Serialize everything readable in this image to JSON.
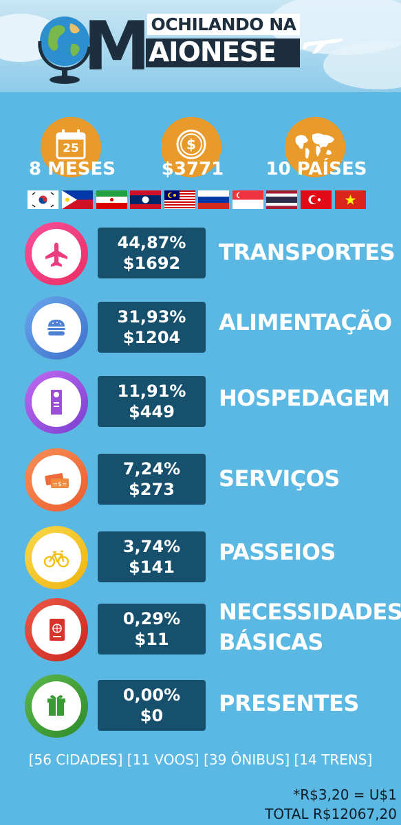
{
  "header": {
    "logo_top": "OCHILANDO NA",
    "logo_m": "M",
    "logo_bottom": "AIONESE"
  },
  "stats": [
    {
      "icon": "calendar-icon",
      "badge": "25",
      "text": "8 MESES"
    },
    {
      "icon": "dollar-coin-icon",
      "badge": "$",
      "text": "$3771"
    },
    {
      "icon": "world-map-icon",
      "badge": "",
      "text": "10 PAÍSES"
    }
  ],
  "flags": [
    "south-korea",
    "philippines",
    "iran",
    "laos",
    "malaysia",
    "russia",
    "singapore",
    "thailand",
    "turkey",
    "vietnam"
  ],
  "chart_data": {
    "type": "table",
    "columns": [
      "category",
      "percent",
      "amount"
    ],
    "rows": [
      {
        "category": "TRANSPORTES",
        "percent": "44,87%",
        "amount": "$1692",
        "value": 1692,
        "share": 44.87,
        "icon": "airplane-icon",
        "color": "#ee3a7e"
      },
      {
        "category": "ALIMENTAÇÃO",
        "percent": "31,93%",
        "amount": "$1204",
        "value": 1204,
        "share": 31.93,
        "icon": "burger-icon",
        "color": "#4f82d6"
      },
      {
        "category": "HOSPEDAGEM",
        "percent": "11,91%",
        "amount": "$449",
        "value": 449,
        "share": 11.91,
        "icon": "door-hanger-icon",
        "color": "#9b4fd8"
      },
      {
        "category": "SERVIÇOS",
        "percent": "7,24%",
        "amount": "$273",
        "value": 273,
        "share": 7.24,
        "icon": "money-bills-icon",
        "color": "#ef6a3a"
      },
      {
        "category": "PASSEIOS",
        "percent": "3,74%",
        "amount": "$141",
        "value": 141,
        "share": 3.74,
        "icon": "bicycle-icon",
        "color": "#f2c21b"
      },
      {
        "category": "NECESSIDADES BÁSICAS",
        "category_lines": [
          "NECESSIDADES",
          "BÁSICAS"
        ],
        "percent": "0,29%",
        "amount": "$11",
        "value": 11,
        "share": 0.29,
        "icon": "passport-icon",
        "color": "#d9342b"
      },
      {
        "category": "PRESENTES",
        "percent": "0,00%",
        "amount": "$0",
        "value": 0,
        "share": 0.0,
        "icon": "gift-icon",
        "color": "#3c9a36"
      }
    ]
  },
  "footer": {
    "counts": "[56 CIDADES] [11 VOOS] [39 ÔNIBUS] [14 TRENS]",
    "rate": "*R$3,20 = U$1",
    "total": "TOTAL R$12067,20"
  }
}
